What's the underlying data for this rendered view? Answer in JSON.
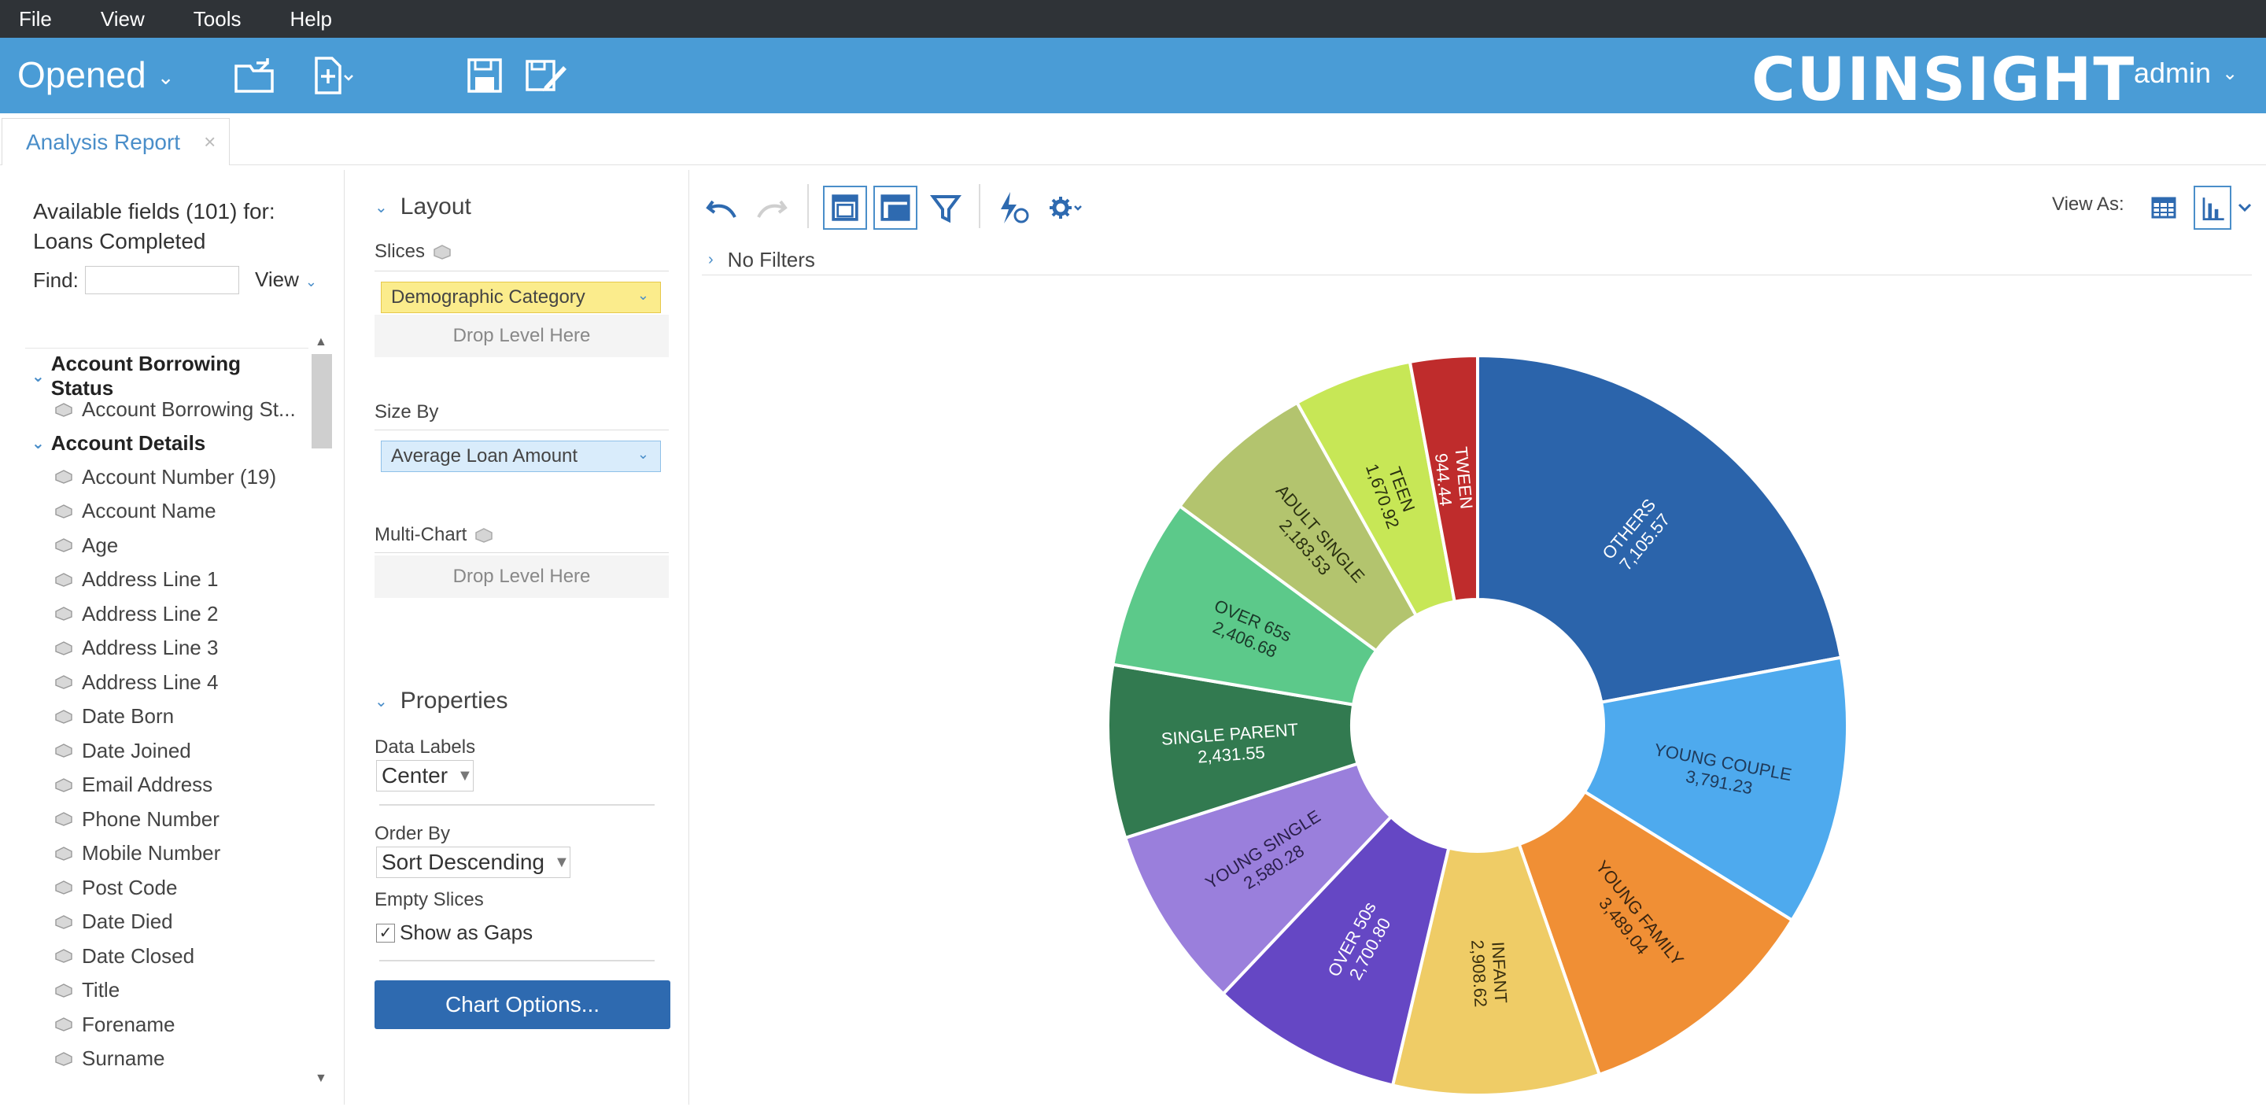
{
  "menu": [
    "File",
    "View",
    "Tools",
    "Help"
  ],
  "toolbar": {
    "opened_label": "Opened",
    "logo": "CUINSIGHT",
    "user": "admin",
    "accent": "#4a9cd6"
  },
  "tab": {
    "label": "Analysis Report",
    "close": "×"
  },
  "fields_panel": {
    "available_line1": "Available fields (101) for:",
    "available_line2": "Loans Completed",
    "find_label": "Find:",
    "find_value": "",
    "view_label": "View",
    "groups": [
      {
        "label": "Account Borrowing Status",
        "items": [
          "Account Borrowing St..."
        ]
      },
      {
        "label": "Account Details",
        "items": [
          "Account Number (19)",
          "Account Name",
          "Age",
          "Address Line 1",
          "Address Line 2",
          "Address Line 3",
          "Address Line 4",
          "Date Born",
          "Date Joined",
          "Email Address",
          "Phone Number",
          "Mobile Number",
          "Post Code",
          "Date Died",
          "Date Closed",
          "Title",
          "Forename",
          "Surname"
        ]
      }
    ]
  },
  "layout_panel": {
    "layout_title": "Layout",
    "slices_label": "Slices",
    "slices_value": "Demographic Category",
    "drop_text": "Drop Level Here",
    "size_by_label": "Size By",
    "size_by_value": "Average Loan Amount",
    "multichart_label": "Multi-Chart",
    "multichart_drop": "Drop Level Here",
    "properties_title": "Properties",
    "data_labels_label": "Data Labels",
    "data_labels_value": "Center",
    "order_by_label": "Order By",
    "order_by_value": "Sort Descending",
    "empty_slices_label": "Empty Slices",
    "show_gaps_label": "Show as Gaps",
    "show_gaps_checked": true,
    "chart_options_label": "Chart Options..."
  },
  "chart_toolbar": {
    "view_as_label": "View As:",
    "filters_text": "No Filters"
  },
  "chart_data": {
    "type": "pie",
    "donut": true,
    "categories": [
      "OTHERS",
      "YOUNG COUPLE",
      "YOUNG FAMILY",
      "INFANT",
      "OVER 50s",
      "YOUNG SINGLE",
      "SINGLE PARENT",
      "OVER 65s",
      "ADULT SINGLE",
      "TEEN",
      "TWEEN"
    ],
    "values": [
      7105.57,
      3791.23,
      3489.04,
      2908.62,
      2700.8,
      2580.28,
      2431.55,
      2406.68,
      2183.53,
      1670.92,
      944.44
    ],
    "labels": [
      "7,105.57",
      "3,791.23",
      "3,489.04",
      "2,908.62",
      "2,700.80",
      "2,580.28",
      "2,431.55",
      "2,406.68",
      "2,183.53",
      "1,670.92",
      "944.44"
    ],
    "colors": [
      "#2b64ab",
      "#4eaaee",
      "#f08f35",
      "#efcc66",
      "#6547c4",
      "#9a7fdc",
      "#327a50",
      "#5cc98a",
      "#b3c46e",
      "#c7e756",
      "#bf2c2c"
    ],
    "label_colors": [
      "#ffffff",
      "#1f3a5a",
      "#3a2510",
      "#3a3010",
      "#ffffff",
      "#2a1f4a",
      "#ffffff",
      "#1a3a2a",
      "#2a3010",
      "#2a3010",
      "#ffffff"
    ]
  }
}
